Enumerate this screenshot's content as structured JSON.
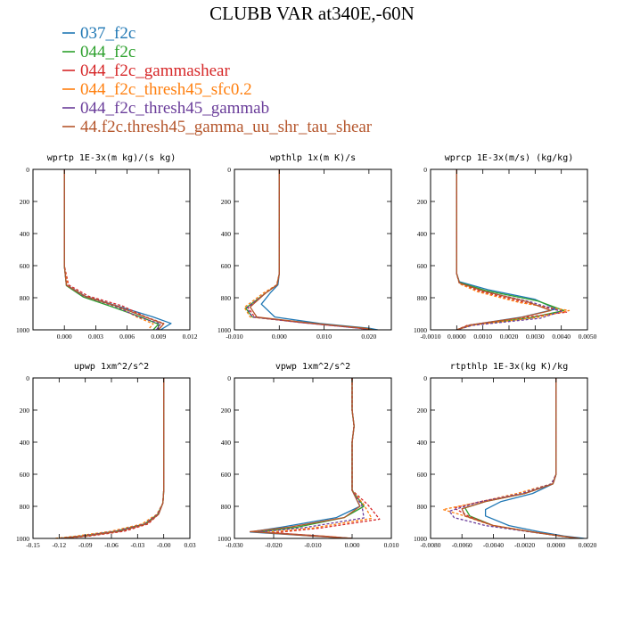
{
  "figure": {
    "title": "CLUBB VAR at340E,-60N"
  },
  "legend": [
    {
      "label": "037_f2c",
      "color": "#1f77b4",
      "dash": "solid"
    },
    {
      "label": "044_f2c",
      "color": "#2ca02c",
      "dash": "solid"
    },
    {
      "label": "044_f2c_gammashear",
      "color": "#d62728",
      "dash": "dashed"
    },
    {
      "label": "044_f2c_thresh45_sfc0.2",
      "color": "#ff7f0e",
      "dash": "dashed"
    },
    {
      "label": "044_f2c_thresh45_gammab",
      "color": "#6a3d9a",
      "dash": "dashed"
    },
    {
      "label": "44.f2c.thresh45_gamma_uu_shr_tau_shear",
      "color": "#b5562c",
      "dash": "solid"
    }
  ],
  "chart_data": [
    {
      "type": "line",
      "title": "wprtp  1E-3x(m kg)/(s kg)",
      "xlim": [
        -0.003,
        0.012
      ],
      "ylim": [
        1000,
        0
      ],
      "xticks": [
        0.0,
        0.003,
        0.006,
        0.009,
        0.012
      ],
      "xticklabels": [
        "0.000",
        "0.003",
        "0.006",
        "0.009",
        "0.012"
      ],
      "yticks": [
        0,
        200,
        400,
        600,
        800,
        1000
      ],
      "yticklabels": [
        "0",
        "200",
        "400",
        "600",
        "800",
        "1000"
      ],
      "series": [
        {
          "x": [
            0,
            0,
            0.0002,
            0.002,
            0.005,
            0.0085,
            0.0102,
            0.0092
          ],
          "y": [
            0,
            600,
            720,
            790,
            850,
            920,
            960,
            1000
          ]
        },
        {
          "x": [
            0,
            0,
            0.0002,
            0.0018,
            0.0045,
            0.0075,
            0.009,
            0.0085
          ],
          "y": [
            0,
            600,
            725,
            795,
            855,
            925,
            965,
            1000
          ]
        },
        {
          "x": [
            0,
            0,
            0.0004,
            0.0023,
            0.0055,
            0.0078,
            0.0095,
            0.009
          ],
          "y": [
            0,
            600,
            720,
            790,
            850,
            920,
            960,
            1000
          ]
        },
        {
          "x": [
            0,
            0,
            0.0003,
            0.002,
            0.005,
            0.007,
            0.0085,
            0.008
          ],
          "y": [
            0,
            600,
            725,
            792,
            852,
            922,
            962,
            1000
          ]
        },
        {
          "x": [
            0,
            0,
            0.0002,
            0.0019,
            0.0048,
            0.0072,
            0.0092,
            0.0088
          ],
          "y": [
            0,
            600,
            722,
            792,
            852,
            922,
            962,
            1000
          ]
        },
        {
          "x": [
            0,
            0,
            0.0002,
            0.002,
            0.005,
            0.0078,
            0.0095,
            0.009
          ],
          "y": [
            0,
            600,
            722,
            792,
            852,
            922,
            962,
            1000
          ]
        }
      ]
    },
    {
      "type": "line",
      "title": "wpthlp  1x(m K)/s",
      "xlim": [
        -0.01,
        0.025
      ],
      "ylim": [
        1000,
        0
      ],
      "xticks": [
        -0.01,
        0.0,
        0.01,
        0.02
      ],
      "xticklabels": [
        "-0.010",
        "0.000",
        "0.010",
        "0.020"
      ],
      "yticks": [
        0,
        200,
        400,
        600,
        800,
        1000
      ],
      "yticklabels": [
        "0",
        "200",
        "400",
        "600",
        "800",
        "1000"
      ],
      "series": [
        {
          "x": [
            0,
            0,
            -0.0003,
            -0.002,
            -0.004,
            -0.001,
            0.009,
            0.02,
            0.022
          ],
          "y": [
            0,
            650,
            720,
            770,
            840,
            920,
            960,
            990,
            1000
          ]
        },
        {
          "x": [
            0,
            0,
            -0.0005,
            -0.003,
            -0.0075,
            -0.006,
            0.006,
            0.019,
            0.021
          ],
          "y": [
            0,
            650,
            720,
            770,
            865,
            920,
            955,
            990,
            1000
          ]
        },
        {
          "x": [
            0,
            0,
            -0.0005,
            -0.003,
            -0.007,
            -0.0055,
            0.005,
            0.018,
            0.02
          ],
          "y": [
            0,
            650,
            720,
            770,
            860,
            920,
            955,
            990,
            1000
          ]
        },
        {
          "x": [
            0,
            0,
            -0.0006,
            -0.0035,
            -0.0078,
            -0.0065,
            0.005,
            0.018,
            0.02
          ],
          "y": [
            0,
            650,
            720,
            770,
            860,
            920,
            955,
            990,
            1000
          ]
        },
        {
          "x": [
            0,
            0,
            -0.0005,
            -0.003,
            -0.0072,
            -0.006,
            0.005,
            0.018,
            0.02
          ],
          "y": [
            0,
            650,
            720,
            770,
            862,
            920,
            955,
            990,
            1000
          ]
        },
        {
          "x": [
            0,
            0,
            -0.0005,
            -0.003,
            -0.0065,
            -0.005,
            0.006,
            0.019,
            0.021
          ],
          "y": [
            0,
            650,
            720,
            770,
            858,
            920,
            955,
            990,
            1000
          ]
        }
      ]
    },
    {
      "type": "line",
      "title": "wprcp  1E-3x(m/s) (kg/kg)",
      "xlim": [
        -0.001,
        0.005
      ],
      "ylim": [
        1000,
        0
      ],
      "xticks": [
        -0.001,
        0.0,
        0.001,
        0.002,
        0.003,
        0.004,
        0.005
      ],
      "xticklabels": [
        "-0.0010",
        "0.0000",
        "0.0010",
        "0.0020",
        "0.0030",
        "0.0040",
        "0.0050"
      ],
      "yticks": [
        0,
        200,
        400,
        600,
        800,
        1000
      ],
      "yticklabels": [
        "0",
        "200",
        "400",
        "600",
        "800",
        "1000"
      ],
      "series": [
        {
          "x": [
            0,
            0,
            0.0001,
            0.0012,
            0.003,
            0.0038,
            0.0025,
            0.0005,
            0
          ],
          "y": [
            0,
            650,
            700,
            750,
            810,
            870,
            920,
            970,
            1000
          ]
        },
        {
          "x": [
            0,
            0,
            0.0001,
            0.0011,
            0.0031,
            0.0041,
            0.0028,
            0.0006,
            0
          ],
          "y": [
            0,
            650,
            705,
            755,
            820,
            880,
            925,
            970,
            1000
          ]
        },
        {
          "x": [
            0,
            0,
            0.0001,
            0.0009,
            0.0026,
            0.0042,
            0.0022,
            0.0004,
            0
          ],
          "y": [
            0,
            650,
            710,
            760,
            830,
            890,
            930,
            972,
            1000
          ]
        },
        {
          "x": [
            0,
            0,
            0.0001,
            0.0008,
            0.0024,
            0.0043,
            0.003,
            0.0006,
            0
          ],
          "y": [
            0,
            650,
            712,
            762,
            830,
            880,
            925,
            970,
            1000
          ]
        },
        {
          "x": [
            0,
            0,
            0.0001,
            0.001,
            0.0028,
            0.004,
            0.0032,
            0.0006,
            0
          ],
          "y": [
            0,
            650,
            708,
            758,
            825,
            885,
            928,
            972,
            1000
          ]
        },
        {
          "x": [
            0,
            0,
            0.0001,
            0.001,
            0.0027,
            0.0036,
            0.0024,
            0.0005,
            0
          ],
          "y": [
            0,
            650,
            708,
            758,
            825,
            880,
            925,
            970,
            1000
          ]
        }
      ]
    },
    {
      "type": "line",
      "title": "upwp  1xm^2/s^2",
      "xlim": [
        -0.15,
        0.03
      ],
      "ylim": [
        1000,
        0
      ],
      "xticks": [
        -0.15,
        -0.12,
        -0.09,
        -0.06,
        -0.03,
        0.0,
        0.03
      ],
      "xticklabels": [
        "-0.15",
        "-0.12",
        "-0.09",
        "-0.06",
        "-0.03",
        "-0.00",
        "0.03"
      ],
      "yticks": [
        0,
        200,
        400,
        600,
        800,
        1000
      ],
      "yticklabels": [
        "0",
        "200",
        "400",
        "600",
        "800",
        "1000"
      ],
      "series": [
        {
          "x": [
            0,
            0,
            -0.001,
            -0.006,
            -0.02,
            -0.05,
            -0.09,
            -0.12
          ],
          "y": [
            0,
            700,
            780,
            850,
            910,
            955,
            985,
            1000
          ]
        },
        {
          "x": [
            0,
            0,
            -0.001,
            -0.007,
            -0.022,
            -0.055,
            -0.095,
            -0.12
          ],
          "y": [
            0,
            700,
            780,
            850,
            910,
            955,
            985,
            1000
          ]
        },
        {
          "x": [
            0,
            0,
            -0.001,
            -0.006,
            -0.018,
            -0.045,
            -0.085,
            -0.115
          ],
          "y": [
            0,
            700,
            780,
            850,
            910,
            955,
            985,
            1000
          ]
        },
        {
          "x": [
            0,
            0,
            -0.001,
            -0.008,
            -0.025,
            -0.06,
            -0.1,
            -0.125
          ],
          "y": [
            0,
            700,
            780,
            850,
            910,
            955,
            985,
            1000
          ]
        },
        {
          "x": [
            0,
            0,
            -0.001,
            -0.007,
            -0.022,
            -0.055,
            -0.095,
            -0.12
          ],
          "y": [
            0,
            700,
            780,
            850,
            910,
            955,
            985,
            1000
          ]
        },
        {
          "x": [
            0,
            0,
            -0.001,
            -0.006,
            -0.02,
            -0.05,
            -0.09,
            -0.118
          ],
          "y": [
            0,
            700,
            780,
            850,
            910,
            955,
            985,
            1000
          ]
        }
      ]
    },
    {
      "type": "line",
      "title": "vpwp  1xm^2/s^2",
      "xlim": [
        -0.03,
        0.01
      ],
      "ylim": [
        1000,
        0
      ],
      "xticks": [
        -0.03,
        -0.02,
        -0.01,
        0.0,
        0.01
      ],
      "xticklabels": [
        "-0.030",
        "-0.020",
        "-0.010",
        "0.000",
        "0.010"
      ],
      "yticks": [
        0,
        200,
        400,
        600,
        800,
        1000
      ],
      "yticklabels": [
        "0",
        "200",
        "400",
        "600",
        "800",
        "1000"
      ],
      "series": [
        {
          "x": [
            0,
            0,
            0.0005,
            0,
            0,
            0.002,
            -0.004,
            -0.018,
            -0.026,
            -0.01,
            0
          ],
          "y": [
            0,
            200,
            300,
            400,
            700,
            800,
            870,
            930,
            960,
            985,
            1000
          ]
        },
        {
          "x": [
            0,
            0,
            0.0005,
            0,
            0,
            0.003,
            -0.002,
            -0.014,
            -0.024,
            -0.008,
            0
          ],
          "y": [
            0,
            200,
            300,
            400,
            700,
            800,
            870,
            930,
            960,
            985,
            1000
          ]
        },
        {
          "x": [
            0,
            0,
            0.0005,
            0,
            0,
            0.004,
            0.007,
            -0.008,
            -0.02,
            -0.005,
            0
          ],
          "y": [
            0,
            200,
            300,
            400,
            700,
            790,
            880,
            935,
            965,
            990,
            1000
          ]
        },
        {
          "x": [
            0,
            0,
            0.0005,
            0,
            0,
            0.003,
            0.005,
            -0.01,
            -0.022,
            -0.006,
            0
          ],
          "y": [
            0,
            200,
            300,
            400,
            700,
            790,
            875,
            935,
            962,
            988,
            1000
          ]
        },
        {
          "x": [
            0,
            0,
            0.0005,
            0,
            0,
            0.0025,
            0.003,
            -0.012,
            -0.024,
            -0.008,
            0
          ],
          "y": [
            0,
            200,
            300,
            400,
            700,
            795,
            872,
            932,
            960,
            986,
            1000
          ]
        },
        {
          "x": [
            0,
            0,
            0.0005,
            0,
            0,
            0.002,
            -0.002,
            -0.016,
            -0.026,
            -0.01,
            0
          ],
          "y": [
            0,
            200,
            300,
            400,
            700,
            800,
            870,
            930,
            958,
            985,
            1000
          ]
        }
      ]
    },
    {
      "type": "line",
      "title": "rtpthlp  1E-3x(kg K)/kg",
      "xlim": [
        -0.008,
        0.002
      ],
      "ylim": [
        1000,
        0
      ],
      "xticks": [
        -0.008,
        -0.006,
        -0.004,
        -0.002,
        0.0,
        0.002
      ],
      "xticklabels": [
        "-0.0080",
        "-0.0060",
        "-0.0040",
        "-0.0020",
        "0.0000",
        "0.0020"
      ],
      "yticks": [
        0,
        200,
        400,
        600,
        800,
        1000
      ],
      "yticklabels": [
        "0",
        "200",
        "400",
        "600",
        "800",
        "1000"
      ],
      "series": [
        {
          "x": [
            0,
            0,
            -0.0002,
            -0.0015,
            -0.0035,
            -0.0045,
            -0.0045,
            -0.003,
            -0.001,
            0.0005,
            0.0018
          ],
          "y": [
            0,
            600,
            660,
            720,
            770,
            820,
            860,
            920,
            960,
            985,
            1000
          ]
        },
        {
          "x": [
            0,
            0,
            -0.0002,
            -0.002,
            -0.0045,
            -0.0058,
            -0.0055,
            -0.004,
            -0.0015,
            0.0003,
            0.0015
          ],
          "y": [
            0,
            600,
            660,
            720,
            770,
            810,
            860,
            920,
            960,
            985,
            1000
          ]
        },
        {
          "x": [
            0,
            0,
            -0.0002,
            -0.002,
            -0.0048,
            -0.0065,
            -0.0056,
            -0.004,
            -0.0015,
            0.0003,
            0.0015
          ],
          "y": [
            0,
            600,
            660,
            720,
            770,
            810,
            860,
            920,
            960,
            985,
            1000
          ]
        },
        {
          "x": [
            0,
            0,
            -0.0003,
            -0.0025,
            -0.005,
            -0.0072,
            -0.006,
            -0.0042,
            -0.0016,
            0.0003,
            0.0015
          ],
          "y": [
            0,
            600,
            660,
            720,
            775,
            820,
            855,
            915,
            958,
            985,
            1000
          ]
        },
        {
          "x": [
            0,
            0,
            -0.0003,
            -0.0022,
            -0.005,
            -0.0068,
            -0.0065,
            -0.0045,
            -0.0016,
            0.0003,
            0.0015
          ],
          "y": [
            0,
            600,
            660,
            720,
            775,
            830,
            870,
            920,
            960,
            985,
            1000
          ]
        },
        {
          "x": [
            0,
            0,
            -0.0002,
            -0.002,
            -0.0045,
            -0.006,
            -0.0058,
            -0.004,
            -0.0015,
            0.0003,
            0.0015
          ],
          "y": [
            0,
            600,
            660,
            720,
            770,
            815,
            860,
            920,
            960,
            985,
            1000
          ]
        }
      ]
    }
  ]
}
